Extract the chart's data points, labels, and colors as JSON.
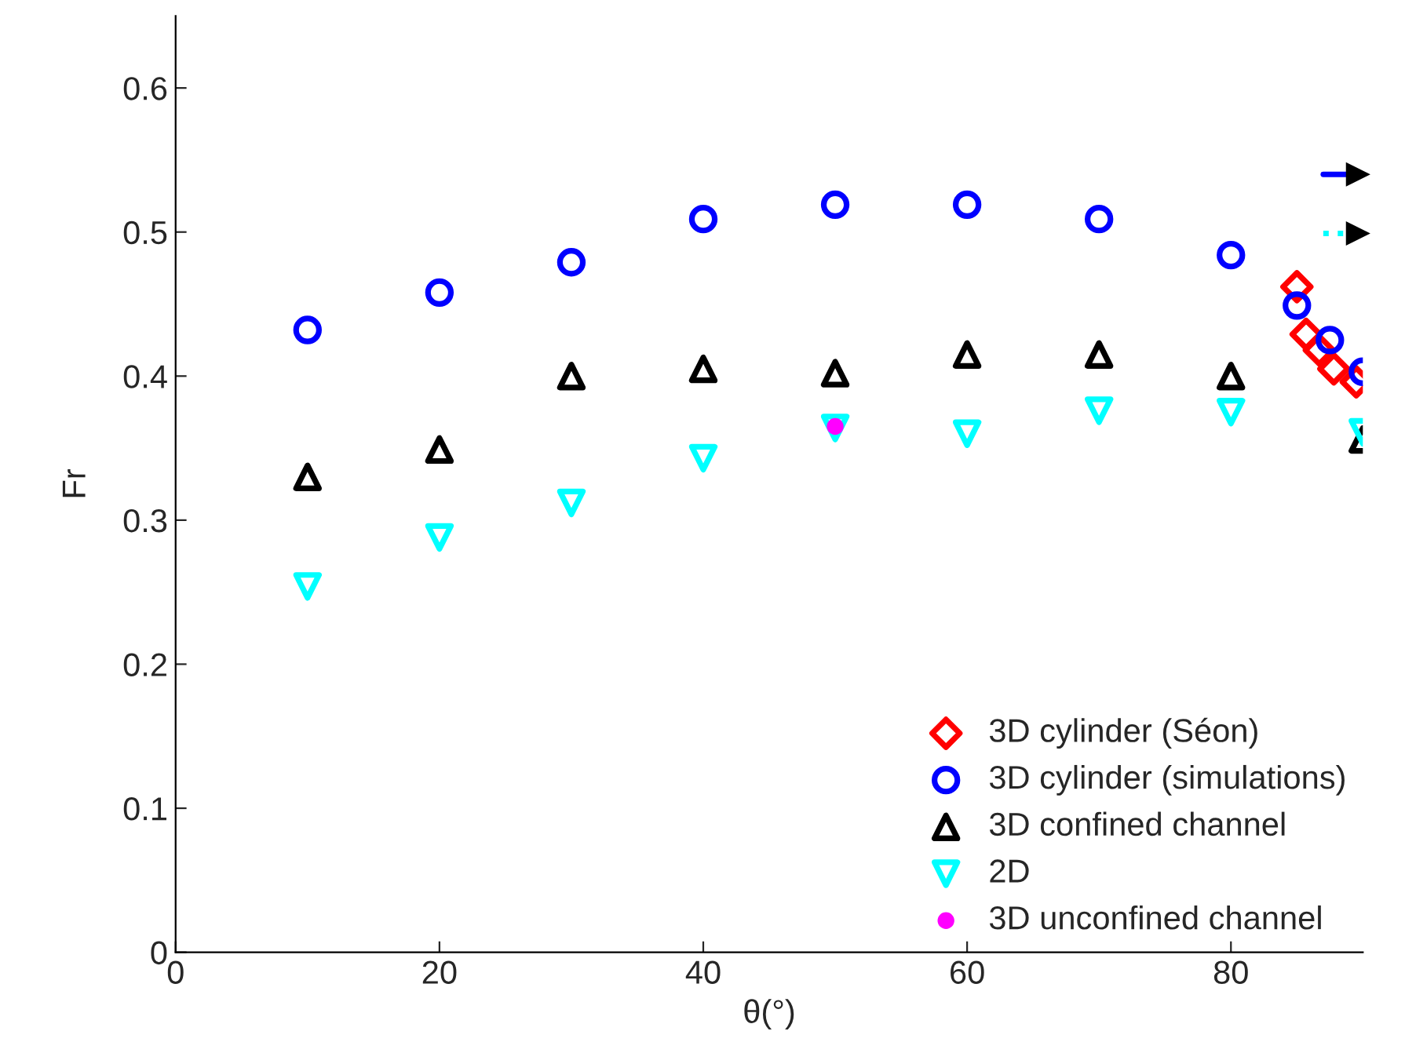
{
  "chart_data": {
    "type": "scatter",
    "xlabel": "θ(°)",
    "ylabel": "Fr",
    "xlim": [
      0,
      90
    ],
    "ylim": [
      0,
      0.65
    ],
    "xticks": [
      0,
      20,
      40,
      60,
      80
    ],
    "yticks": [
      0,
      0.1,
      0.2,
      0.3,
      0.4,
      0.5,
      0.6
    ],
    "grid": false,
    "legend": "bottom right",
    "series": [
      {
        "name": "3D cylinder (Séon)",
        "color": "#ff0000",
        "marker": "diamond",
        "x": [
          85,
          85.7,
          86.7,
          87.8,
          89.5
        ],
        "values": [
          0.462,
          0.429,
          0.418,
          0.405,
          0.396
        ]
      },
      {
        "name": "3D cylinder (simulations)",
        "color": "#0000ff",
        "marker": "circle",
        "x": [
          10,
          20,
          30,
          40,
          50,
          60,
          70,
          80,
          85,
          87.5,
          90
        ],
        "values": [
          0.432,
          0.458,
          0.479,
          0.509,
          0.519,
          0.519,
          0.509,
          0.484,
          0.449,
          0.425,
          0.403
        ]
      },
      {
        "name": "3D confined channel",
        "color": "#000000",
        "marker": "triangle",
        "x": [
          10,
          20,
          30,
          40,
          50,
          60,
          70,
          80,
          90
        ],
        "values": [
          0.33,
          0.349,
          0.4,
          0.405,
          0.402,
          0.415,
          0.415,
          0.4,
          0.356
        ]
      },
      {
        "name": "2D",
        "color": "#00ffff",
        "marker": "triangle_down",
        "x": [
          10,
          20,
          30,
          40,
          50,
          60,
          70,
          80,
          90
        ],
        "values": [
          0.254,
          0.288,
          0.312,
          0.343,
          0.364,
          0.36,
          0.376,
          0.375,
          0.361
        ]
      },
      {
        "name": "3D unconfined channel",
        "color": "#ff00ff",
        "marker": "filled_circle",
        "x": [
          50
        ],
        "values": [
          0.365
        ]
      },
      {
        "type": "line",
        "color": "#0000ff",
        "line_style": "solid",
        "x": [
          87,
          90
        ],
        "values": [
          0.54,
          0.54
        ]
      },
      {
        "type": "line",
        "color": "#00ffff",
        "line_style": "dotted",
        "x": [
          87,
          90
        ],
        "values": [
          0.499,
          0.499
        ]
      }
    ]
  }
}
